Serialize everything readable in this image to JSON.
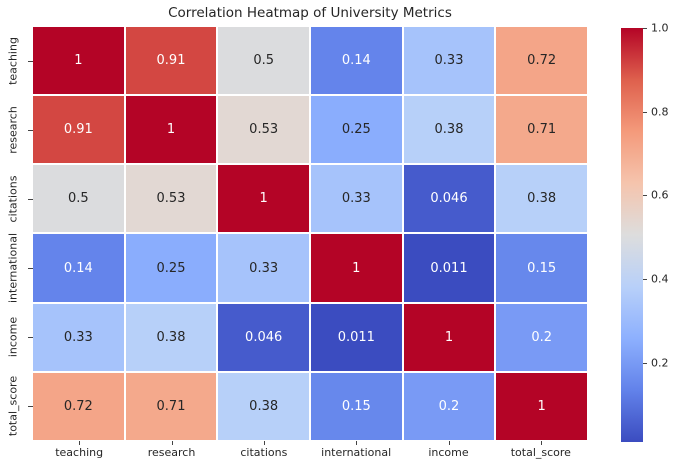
{
  "chart_data": {
    "type": "heatmap",
    "title": "Correlation Heatmap of University Metrics",
    "x_labels": [
      "teaching",
      "research",
      "citations",
      "international",
      "income",
      "total_score"
    ],
    "y_labels": [
      "teaching",
      "research",
      "citations",
      "international",
      "income",
      "total_score"
    ],
    "matrix": [
      [
        1,
        0.91,
        0.5,
        0.14,
        0.33,
        0.72
      ],
      [
        0.91,
        1,
        0.53,
        0.25,
        0.38,
        0.71
      ],
      [
        0.5,
        0.53,
        1,
        0.33,
        0.046,
        0.38
      ],
      [
        0.14,
        0.25,
        0.33,
        1,
        0.011,
        0.15
      ],
      [
        0.33,
        0.38,
        0.046,
        0.011,
        1,
        0.2
      ],
      [
        0.72,
        0.71,
        0.38,
        0.15,
        0.2,
        1
      ]
    ],
    "colormap": "coolwarm",
    "colormap_stops": [
      "#3b4cc0",
      "#6282ea",
      "#8db0fe",
      "#b8d0f9",
      "#dddddd",
      "#f5c4ad",
      "#f49a7b",
      "#de604d",
      "#b40426"
    ],
    "vmin": 0.011,
    "vmax": 1.0,
    "colorbar_ticks": [
      "1.0",
      "0.8",
      "0.6",
      "0.4",
      "0.2"
    ],
    "grid_line_color": "#ffffff",
    "annotation_colors": {
      "light": "#ffffff",
      "dark": "#262626"
    },
    "axis_text_color": "#262626",
    "background": "#ffffff",
    "legend_position": "right-colorbar",
    "grid": "white-cell-separators"
  }
}
